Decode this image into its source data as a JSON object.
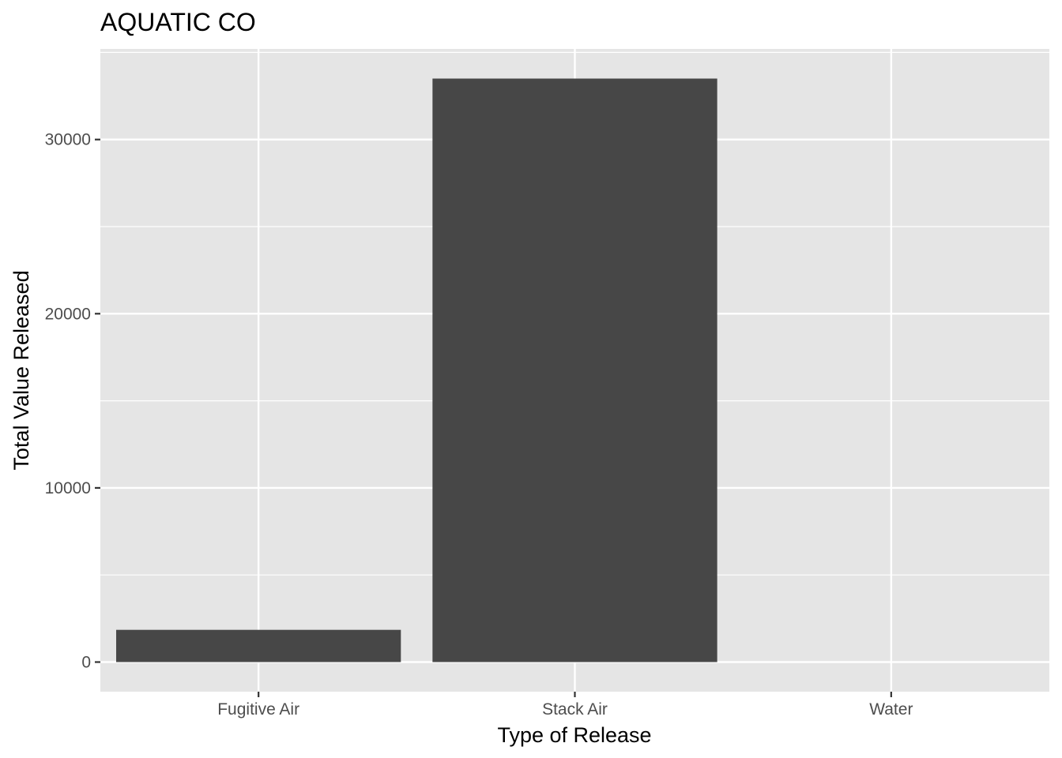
{
  "colors": {
    "panel": "#e5e5e5",
    "grid": "#ffffff",
    "bar": "#474747",
    "tick_mark": "#333333"
  },
  "chart_data": {
    "type": "bar",
    "title": "AQUATIC CO",
    "xlabel": "Type of Release",
    "ylabel": "Total Value Released",
    "categories": [
      "Fugitive Air",
      "Stack Air",
      "Water"
    ],
    "values": [
      1850,
      33500,
      0
    ],
    "ylim": [
      -1700,
      35200
    ],
    "yticks": [
      0,
      10000,
      20000,
      30000
    ],
    "ytick_labels": [
      "0",
      "10000",
      "20000",
      "30000"
    ],
    "grid": true,
    "legend": "none"
  }
}
